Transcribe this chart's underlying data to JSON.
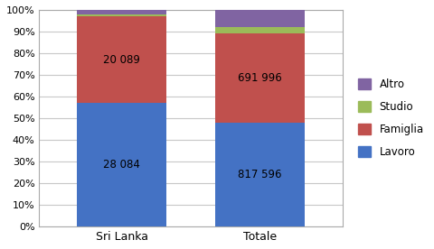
{
  "categories": [
    "Sri Lanka",
    "Totale"
  ],
  "series": {
    "Lavoro": [
      57.0,
      48.0
    ],
    "Famiglia": [
      40.0,
      41.0
    ],
    "Studio": [
      1.0,
      3.0
    ],
    "Altro": [
      2.0,
      8.0
    ]
  },
  "labels": {
    "Lavoro": [
      "28 084",
      "817 596"
    ],
    "Famiglia": [
      "20 089",
      "691 996"
    ],
    "Studio": [
      "",
      ""
    ],
    "Altro": [
      "",
      ""
    ]
  },
  "colors": {
    "Lavoro": "#4472C4",
    "Famiglia": "#C0504D",
    "Studio": "#9BBB59",
    "Altro": "#8064A2"
  },
  "ylim": [
    0,
    100
  ],
  "yticks": [
    0,
    10,
    20,
    30,
    40,
    50,
    60,
    70,
    80,
    90,
    100
  ],
  "ytick_labels": [
    "0%",
    "10%",
    "20%",
    "30%",
    "40%",
    "50%",
    "60%",
    "70%",
    "80%",
    "90%",
    "100%"
  ],
  "legend_order": [
    "Altro",
    "Studio",
    "Famiglia",
    "Lavoro"
  ],
  "bar_width": 0.65,
  "figsize": [
    4.81,
    2.76
  ],
  "dpi": 100
}
